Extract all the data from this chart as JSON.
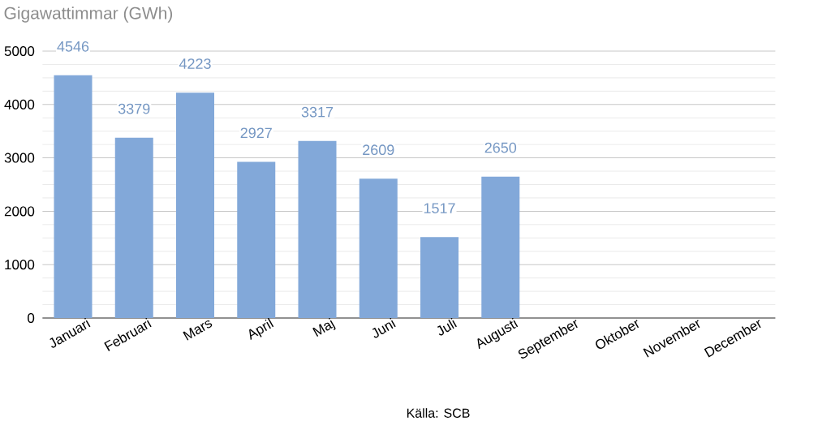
{
  "chart_data": {
    "type": "bar",
    "ylabel": "Gigawattimmar (GWh)",
    "categories": [
      "Januari",
      "Februari",
      "Mars",
      "April",
      "Maj",
      "Juni",
      "Juli",
      "Augusti",
      "September",
      "Oktober",
      "November",
      "December"
    ],
    "values": [
      4546,
      3379,
      4223,
      2927,
      3317,
      2609,
      1517,
      2650,
      null,
      null,
      null,
      null
    ],
    "color": "#82a8d9",
    "ylim": [
      0,
      5000
    ],
    "yticks": [
      0,
      1000,
      2000,
      3000,
      4000,
      5000
    ],
    "grid": "y",
    "data_labels": true,
    "annotations": [
      "Källa: SCB"
    ]
  }
}
